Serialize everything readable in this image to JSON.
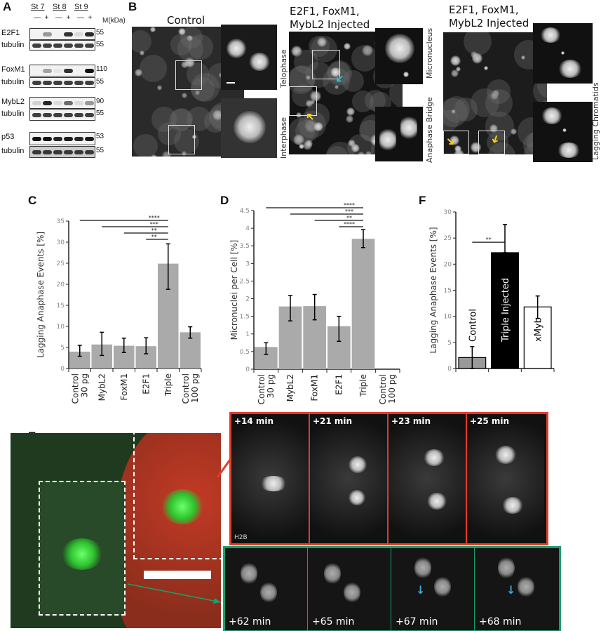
{
  "panels": {
    "A": {
      "label": "A",
      "stages": [
        "St 7",
        "St 8",
        "St 9"
      ],
      "lane_signs": [
        "—",
        "+",
        "—",
        "+",
        "—",
        "+"
      ],
      "mw_header": "M(kDa)",
      "rows": [
        {
          "name": "E2F1",
          "kda": "55"
        },
        {
          "name": "tubulin",
          "kda": "55"
        },
        {
          "name": "FoxM1",
          "kda": "110"
        },
        {
          "name": "tubulin",
          "kda": "55"
        },
        {
          "name": "MybL2",
          "kda": "90"
        },
        {
          "name": "tubulin",
          "kda": "55"
        },
        {
          "name": "p53",
          "kda": "53"
        },
        {
          "name": "tubulin",
          "kda": "55"
        }
      ]
    },
    "B": {
      "label": "B",
      "control_title": "Control",
      "injected_title_1": "E2F1, FoxM1, MybL2 Injected",
      "injected_title_2": "E2F1, FoxM1, MybL2 Injected",
      "inset_labels": {
        "telophase": "Telophase",
        "interphase": "Interphase",
        "micronucleus": "Micronucleus",
        "anaphase_bridge": "Anaphase Bridge",
        "lagging": "Lagging Chromatids"
      },
      "arrow_colors": {
        "cyan": "#22c4d8",
        "yellow": "#f2d21a"
      }
    },
    "C": {
      "label": "C"
    },
    "D": {
      "label": "D"
    },
    "F": {
      "label": "F"
    },
    "E": {
      "label": "E",
      "channel_label": "H2B",
      "top_times": [
        "+14 min",
        "+21 min",
        "+23 min",
        "+25 min"
      ],
      "bottom_times": [
        "+62 min",
        "+65 min",
        "+67 min",
        "+68 min"
      ],
      "colors": {
        "top_border": "#e23b2a",
        "bottom_border": "#1aa06b",
        "arrow": "#3aa8e0"
      }
    }
  },
  "chart_data": [
    {
      "id": "C",
      "type": "bar",
      "ylabel": "Lagging Anaphase Events [%]",
      "ylim": [
        0,
        35
      ],
      "yticks": [
        0,
        5,
        10,
        15,
        20,
        25,
        30,
        35
      ],
      "categories": [
        [
          "Control",
          "30 pg"
        ],
        [
          "MybL2"
        ],
        [
          "FoxM1"
        ],
        [
          "E2F1"
        ],
        [
          "Triple"
        ],
        [
          "Control",
          "100 pg"
        ]
      ],
      "values": [
        4.0,
        5.7,
        5.4,
        5.3,
        24.9,
        8.6
      ],
      "err_low": [
        2.9,
        3.1,
        3.8,
        3.5,
        18.8,
        7.2
      ],
      "err_high": [
        5.5,
        8.6,
        7.2,
        7.3,
        29.6,
        9.9
      ],
      "bar_color": "#aaaaaa",
      "significance": [
        {
          "from": 0,
          "to": 4,
          "label": "****"
        },
        {
          "from": 1,
          "to": 4,
          "label": "***"
        },
        {
          "from": 2,
          "to": 4,
          "label": "**"
        },
        {
          "from": 3,
          "to": 4,
          "label": "**"
        }
      ]
    },
    {
      "id": "D",
      "type": "bar",
      "ylabel": "Micronuclei per Cell [%]",
      "ylim": [
        0,
        4.5
      ],
      "yticks": [
        0,
        0.5,
        1,
        1.5,
        2,
        2.5,
        3,
        3.5,
        4,
        4.5
      ],
      "categories": [
        [
          "Control",
          "30 pg"
        ],
        [
          "MybL2"
        ],
        [
          "FoxM1"
        ],
        [
          "E2F1"
        ],
        [
          "Triple"
        ],
        [
          "Control",
          "100 pg"
        ]
      ],
      "values": [
        0.63,
        1.78,
        1.79,
        1.22,
        3.7,
        null
      ],
      "err_low": [
        0.42,
        1.37,
        1.4,
        0.79,
        3.45,
        null
      ],
      "err_high": [
        0.75,
        2.09,
        2.12,
        1.5,
        3.96,
        null
      ],
      "bar_color": "#aaaaaa",
      "significance": [
        {
          "from": 0,
          "to": 4,
          "label": "****"
        },
        {
          "from": 1,
          "to": 4,
          "label": "***"
        },
        {
          "from": 2,
          "to": 4,
          "label": "**"
        },
        {
          "from": 3,
          "to": 4,
          "label": "****"
        }
      ]
    },
    {
      "id": "F",
      "type": "bar",
      "ylabel": "Lagging Anaphase Events [%]",
      "ylim": [
        0,
        30
      ],
      "yticks": [
        0,
        5,
        10,
        15,
        20,
        25,
        30
      ],
      "categories": [
        [
          "Control"
        ],
        [
          "Triple Injected"
        ],
        [
          "xMyb"
        ]
      ],
      "values": [
        2.1,
        22.2,
        11.8
      ],
      "err_low": [
        0,
        22.2,
        9.6
      ],
      "err_high": [
        4.2,
        27.6,
        13.9
      ],
      "bar_colors": [
        "#999999",
        "#000000",
        "#ffffff"
      ],
      "significance": [
        {
          "from": 0,
          "to": 1,
          "label": "**"
        }
      ]
    }
  ]
}
